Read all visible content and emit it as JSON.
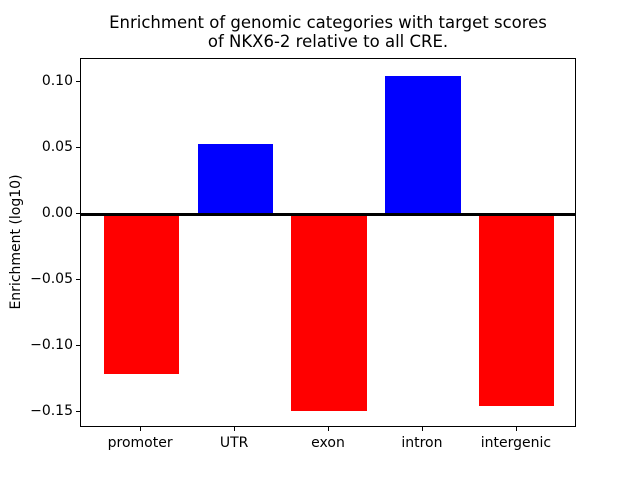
{
  "chart_data": {
    "type": "bar",
    "title": "Enrichment of genomic categories with target scores\nof NKX6-2 relative to all CRE.",
    "ylabel": "Enrichment (log10)",
    "xlabel": "",
    "categories": [
      "promoter",
      "UTR",
      "exon",
      "intron",
      "intergenic"
    ],
    "values": [
      -0.121,
      0.053,
      -0.149,
      0.105,
      -0.145
    ],
    "bar_colors": [
      "#ff0000",
      "#0000ff",
      "#ff0000",
      "#0000ff",
      "#ff0000"
    ],
    "positive_color": "#0000ff",
    "negative_color": "#ff0000",
    "yticks": [
      0.1,
      0.05,
      0.0,
      -0.05,
      -0.1,
      -0.15
    ],
    "ytick_labels": [
      "0.10",
      "0.05",
      "0.00",
      "−0.05",
      "−0.10",
      "−0.15"
    ],
    "ylim": [
      -0.162,
      0.118
    ],
    "xlim": [
      -0.64,
      4.64
    ],
    "bar_width": 0.8,
    "zero_line": true,
    "zero_line_color": "#000000",
    "grid": false,
    "legend": null,
    "background_color": "#ffffff",
    "axis_color": "#000000"
  }
}
